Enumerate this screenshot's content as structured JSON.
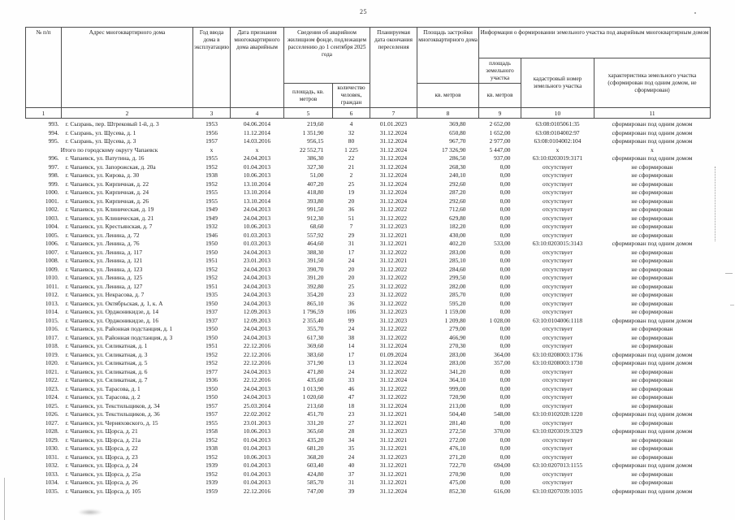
{
  "page": {
    "number": "25"
  },
  "table": {
    "header": {
      "num": "№ п/п",
      "address": "Адрес многоквартирного дома",
      "year": "Год ввода дома в эксплуатацию",
      "date_recognized": "Дата признания многоквартирного дома аварийным",
      "fund_group": "Сведения об аварийном жилищном фонде, подлежащем расселению до 1 сентября 2025 года",
      "fund_area": "площадь, кв. метров",
      "fund_people": "количество человек, граждан",
      "resettle_date": "Планируемая дата окончания переселения",
      "footprint": "Площадь застройки многоквартирного дома",
      "footprint_unit": "кв. метров",
      "land_group": "Информация о формировании земельного участка под аварийным многоквартирным домом",
      "land_area": "площадь земельного участка",
      "land_area_unit": "кв. метров",
      "cadastre": "кадастровый номер земельного участка",
      "characteristic": "характеристика земельного участка (сформирован под одним домом, не сформирован)"
    },
    "column_numbers": [
      "1",
      "2",
      "3",
      "4",
      "5",
      "6",
      "7",
      "8",
      "9",
      "10",
      "11"
    ],
    "rows": [
      {
        "n": "993.",
        "address": "г. Сызрань, пер. Штрековый 1-й, д. 3",
        "year": "1953",
        "date": "04.06.2014",
        "area": "219,60",
        "people": "4",
        "pdate": "01.01.2023",
        "footprint": "369,80",
        "land": "2 652,00",
        "cad": "63:08:0105061:35",
        "status": "сформирован под одним домом"
      },
      {
        "n": "994.",
        "address": "г. Сызрань, ул. Щусева, д. 1",
        "year": "1956",
        "date": "11.12.2014",
        "area": "1 351,90",
        "people": "32",
        "pdate": "31.12.2024",
        "footprint": "650,80",
        "land": "1 652,00",
        "cad": "63:08:0104002:97",
        "status": "сформирован под одним домом"
      },
      {
        "n": "995.",
        "address": "г. Сызрань, ул. Щусева, д. 3",
        "year": "1957",
        "date": "14.03.2016",
        "area": "956,15",
        "people": "80",
        "pdate": "31.12.2024",
        "footprint": "967,70",
        "land": "2 977,00",
        "cad": "63:08:0104002:104",
        "status": "сформирован под одним домом"
      },
      {
        "label": "Итого по городскому округу Чапаевск",
        "year": "x",
        "date": "x",
        "area": "22 552,71",
        "people": "1 225",
        "pdate": "31.12.2024",
        "footprint": "17 326,90",
        "land": "5 447,00",
        "cad": "x",
        "status": "x"
      },
      {
        "n": "996.",
        "address": "г. Чапаевск, ул. Ватутина, д. 16",
        "year": "1955",
        "date": "24.04.2013",
        "area": "386,30",
        "people": "22",
        "pdate": "31.12.2024",
        "footprint": "286,50",
        "land": "937,00",
        "cad": "63:10:0203019:3171",
        "status": "сформирован под одним домом"
      },
      {
        "n": "997.",
        "address": "г. Чапаевск, ул. Запорожская, д. 20а",
        "year": "1952",
        "date": "01.04.2013",
        "area": "327,30",
        "people": "21",
        "pdate": "31.12.2024",
        "footprint": "268,30",
        "land": "0,00",
        "cad": "отсутствует",
        "status": "не сформирован"
      },
      {
        "n": "998.",
        "address": "г. Чапаевск, ул. Кирова, д. 30",
        "year": "1938",
        "date": "10.06.2013",
        "area": "51,00",
        "people": "2",
        "pdate": "31.12.2024",
        "footprint": "240,10",
        "land": "0,00",
        "cad": "отсутствует",
        "status": "не сформирован"
      },
      {
        "n": "999.",
        "address": "г. Чапаевск, ул. Кирпичная, д. 22",
        "year": "1952",
        "date": "13.10.2014",
        "area": "407,20",
        "people": "25",
        "pdate": "31.12.2024",
        "footprint": "292,60",
        "land": "0,00",
        "cad": "отсутствует",
        "status": "не сформирован"
      },
      {
        "n": "1000.",
        "address": "г. Чапаевск, ул. Кирпичная, д. 24",
        "year": "1955",
        "date": "13.10.2014",
        "area": "418,80",
        "people": "19",
        "pdate": "31.12.2024",
        "footprint": "287,20",
        "land": "0,00",
        "cad": "отсутствует",
        "status": "не сформирован"
      },
      {
        "n": "1001.",
        "address": "г. Чапаевск, ул. Кирпичная, д. 26",
        "year": "1955",
        "date": "13.10.2014",
        "area": "393,80",
        "people": "20",
        "pdate": "31.12.2024",
        "footprint": "292,60",
        "land": "0,00",
        "cad": "отсутствует",
        "status": "не сформирован"
      },
      {
        "n": "1002.",
        "address": "г. Чапаевск, ул. Клиническая, д. 19",
        "year": "1949",
        "date": "24.04.2013",
        "area": "991,50",
        "people": "36",
        "pdate": "31.12.2022",
        "footprint": "712,60",
        "land": "0,00",
        "cad": "отсутствует",
        "status": "не сформирован"
      },
      {
        "n": "1003.",
        "address": "г. Чапаевск, ул. Клиническая, д. 21",
        "year": "1949",
        "date": "24.04.2013",
        "area": "912,30",
        "people": "51",
        "pdate": "31.12.2022",
        "footprint": "629,80",
        "land": "0,00",
        "cad": "отсутствует",
        "status": "не сформирован"
      },
      {
        "n": "1004.",
        "address": "г. Чапаевск, ул. Крестьянская, д. 7",
        "year": "1932",
        "date": "10.06.2013",
        "area": "68,60",
        "people": "7",
        "pdate": "31.12.2023",
        "footprint": "182,20",
        "land": "0,00",
        "cad": "отсутствует",
        "status": "не сформирован"
      },
      {
        "n": "1005.",
        "address": "г. Чапаевск, ул. Ленина, д. 72",
        "year": "1946",
        "date": "01.03.2013",
        "area": "557,92",
        "people": "29",
        "pdate": "31.12.2021",
        "footprint": "430,00",
        "land": "0,00",
        "cad": "отсутствует",
        "status": "не сформирован"
      },
      {
        "n": "1006.",
        "address": "г. Чапаевск, ул. Ленина, д. 76",
        "year": "1950",
        "date": "01.03.2013",
        "area": "464,60",
        "people": "31",
        "pdate": "31.12.2021",
        "footprint": "402,20",
        "land": "533,00",
        "cad": "63:10:0203015:3143",
        "status": "сформирован под одним домом"
      },
      {
        "n": "1007.",
        "address": "г. Чапаевск, ул. Ленина, д. 117",
        "year": "1950",
        "date": "24.04.2013",
        "area": "388,30",
        "people": "17",
        "pdate": "31.12.2022",
        "footprint": "283,00",
        "land": "0,00",
        "cad": "отсутствует",
        "status": "не сформирован"
      },
      {
        "n": "1008.",
        "address": "г. Чапаевск, ул. Ленина, д. 121",
        "year": "1951",
        "date": "23.01.2013",
        "area": "391,50",
        "people": "24",
        "pdate": "31.12.2021",
        "footprint": "285,10",
        "land": "0,00",
        "cad": "отсутствует",
        "status": "не сформирован"
      },
      {
        "n": "1009.",
        "address": "г. Чапаевск, ул. Ленина, д. 123",
        "year": "1952",
        "date": "24.04.2013",
        "area": "390,70",
        "people": "20",
        "pdate": "31.12.2022",
        "footprint": "284,60",
        "land": "0,00",
        "cad": "отсутствует",
        "status": "не сформирован"
      },
      {
        "n": "1010.",
        "address": "г. Чапаевск, ул. Ленина, д. 125",
        "year": "1952",
        "date": "24.04.2013",
        "area": "391,20",
        "people": "20",
        "pdate": "31.12.2022",
        "footprint": "299,50",
        "land": "0,00",
        "cad": "отсутствует",
        "status": "не сформирован"
      },
      {
        "n": "1011.",
        "address": "г. Чапаевск, ул. Ленина, д. 127",
        "year": "1951",
        "date": "24.04.2013",
        "area": "392,80",
        "people": "25",
        "pdate": "31.12.2022",
        "footprint": "282,00",
        "land": "0,00",
        "cad": "отсутствует",
        "status": "не сформирован"
      },
      {
        "n": "1012.",
        "address": "г. Чапаевск, ул. Некрасова, д. 7",
        "year": "1935",
        "date": "24.04.2013",
        "area": "354,20",
        "people": "23",
        "pdate": "31.12.2022",
        "footprint": "285,70",
        "land": "0,00",
        "cad": "отсутствует",
        "status": "не сформирован"
      },
      {
        "n": "1013.",
        "address": "г. Чапаевск, ул. Октябрьская, д. 1, к. А",
        "year": "1950",
        "date": "24.04.2013",
        "area": "865,10",
        "people": "36",
        "pdate": "31.12.2022",
        "footprint": "595,20",
        "land": "0,00",
        "cad": "отсутствует",
        "status": "не сформирован"
      },
      {
        "n": "1014.",
        "address": "г. Чапаевск, ул. Орджоникидзе, д. 14",
        "year": "1937",
        "date": "12.09.2013",
        "area": "1 796,59",
        "people": "106",
        "pdate": "31.12.2023",
        "footprint": "1 159,00",
        "land": "0,00",
        "cad": "отсутствует",
        "status": "не сформирован"
      },
      {
        "n": "1015.",
        "address": "г. Чапаевск, ул. Орджоникидзе, д. 16",
        "year": "1937",
        "date": "12.09.2013",
        "area": "2 355,40",
        "people": "99",
        "pdate": "31.12.2023",
        "footprint": "1 209,80",
        "land": "1 028,00",
        "cad": "63:10:0104006:1118",
        "status": "сформирован под одним домом"
      },
      {
        "n": "1016.",
        "address": "г. Чапаевск, ул. Районная подстанция, д. 1",
        "year": "1950",
        "date": "24.04.2013",
        "area": "355,70",
        "people": "24",
        "pdate": "31.12.2022",
        "footprint": "279,00",
        "land": "0,00",
        "cad": "отсутствует",
        "status": "не сформирован"
      },
      {
        "n": "1017.",
        "address": "г. Чапаевск, ул. Районная подстанция, д. 3",
        "year": "1950",
        "date": "24.04.2013",
        "area": "617,30",
        "people": "38",
        "pdate": "31.12.2022",
        "footprint": "466,90",
        "land": "0,00",
        "cad": "отсутствует",
        "status": "не сформирован"
      },
      {
        "n": "1018.",
        "address": "г. Чапаевск, ул. Силикатная, д. 1",
        "year": "1951",
        "date": "22.12.2016",
        "area": "369,60",
        "people": "14",
        "pdate": "31.12.2024",
        "footprint": "270,30",
        "land": "0,00",
        "cad": "отсутствует",
        "status": "не сформирован"
      },
      {
        "n": "1019.",
        "address": "г. Чапаевск, ул. Силикатная, д. 3",
        "year": "1952",
        "date": "22.12.2016",
        "area": "383,60",
        "people": "17",
        "pdate": "01.09.2024",
        "footprint": "283,00",
        "land": "364,00",
        "cad": "63:10:0208003:1736",
        "status": "сформирован под одним домом"
      },
      {
        "n": "1020.",
        "address": "г. Чапаевск, ул. Силикатная, д. 5",
        "year": "1952",
        "date": "22.12.2016",
        "area": "371,90",
        "people": "13",
        "pdate": "31.12.2024",
        "footprint": "283,00",
        "land": "357,00",
        "cad": "63:10:0208003:1730",
        "status": "сформирован под одним домом"
      },
      {
        "n": "1021.",
        "address": "г. Чапаевск, ул. Силикатная, д. 6",
        "year": "1977",
        "date": "24.04.2013",
        "area": "471,80",
        "people": "24",
        "pdate": "31.12.2022",
        "footprint": "341,20",
        "land": "0,00",
        "cad": "отсутствует",
        "status": "не сформирован"
      },
      {
        "n": "1022.",
        "address": "г. Чапаевск, ул. Силикатная, д. 7",
        "year": "1936",
        "date": "22.12.2016",
        "area": "435,60",
        "people": "33",
        "pdate": "31.12.2024",
        "footprint": "364,10",
        "land": "0,00",
        "cad": "отсутствует",
        "status": "не сформирован"
      },
      {
        "n": "1023.",
        "address": "г. Чапаевск, ул. Тарасова, д. 1",
        "year": "1950",
        "date": "24.04.2013",
        "area": "1 013,90",
        "people": "46",
        "pdate": "31.12.2022",
        "footprint": "999,00",
        "land": "0,00",
        "cad": "отсутствует",
        "status": "не сформирован"
      },
      {
        "n": "1024.",
        "address": "г. Чапаевск, ул. Тарасова, д. 2",
        "year": "1950",
        "date": "24.04.2013",
        "area": "1 020,60",
        "people": "47",
        "pdate": "31.12.2022",
        "footprint": "720,90",
        "land": "0,00",
        "cad": "отсутствует",
        "status": "не сформирован"
      },
      {
        "n": "1025.",
        "address": "г. Чапаевск, ул. Текстильщиков, д. 34",
        "year": "1957",
        "date": "25.03.2014",
        "area": "213,60",
        "people": "18",
        "pdate": "31.12.2024",
        "footprint": "213,00",
        "land": "0,00",
        "cad": "отсутствует",
        "status": "не сформирован"
      },
      {
        "n": "1026.",
        "address": "г. Чапаевск, ул. Текстильщиков, д. 36",
        "year": "1957",
        "date": "22.02.2012",
        "area": "451,70",
        "people": "23",
        "pdate": "31.12.2021",
        "footprint": "504,40",
        "land": "548,00",
        "cad": "63:10:0102028:1220",
        "status": "сформирован под одним домом"
      },
      {
        "n": "1027.",
        "address": "г. Чапаевск, ул. Черняховского, д. 15",
        "year": "1955",
        "date": "23.01.2013",
        "area": "331,20",
        "people": "27",
        "pdate": "31.12.2021",
        "footprint": "281,40",
        "land": "0,00",
        "cad": "отсутствует",
        "status": "не сформирован"
      },
      {
        "n": "1028.",
        "address": "г. Чапаевск, ул. Щорса, д. 21",
        "year": "1958",
        "date": "10.06.2013",
        "area": "365,60",
        "people": "28",
        "pdate": "31.12.2023",
        "footprint": "272,50",
        "land": "370,00",
        "cad": "63:10:0203019:3329",
        "status": "сформирован под одним домом"
      },
      {
        "n": "1029.",
        "address": "г. Чапаевск, ул. Щорса, д. 21а",
        "year": "1952",
        "date": "01.04.2013",
        "area": "435,20",
        "people": "34",
        "pdate": "31.12.2021",
        "footprint": "272,00",
        "land": "0,00",
        "cad": "отсутствует",
        "status": "не сформирован"
      },
      {
        "n": "1030.",
        "address": "г. Чапаевск, ул. Щорса, д. 22",
        "year": "1938",
        "date": "01.04.2013",
        "area": "681,20",
        "people": "35",
        "pdate": "31.12.2021",
        "footprint": "476,10",
        "land": "0,00",
        "cad": "отсутствует",
        "status": "не сформирован"
      },
      {
        "n": "1031.",
        "address": "г. Чапаевск, ул. Щорса, д. 23",
        "year": "1952",
        "date": "10.06.2013",
        "area": "368,20",
        "people": "24",
        "pdate": "31.12.2023",
        "footprint": "271,20",
        "land": "0,00",
        "cad": "отсутствует",
        "status": "не сформирован"
      },
      {
        "n": "1032.",
        "address": "г. Чапаевск, ул. Щорса, д. 24",
        "year": "1939",
        "date": "01.04.2013",
        "area": "603,40",
        "people": "40",
        "pdate": "31.12.2021",
        "footprint": "722,70",
        "land": "694,00",
        "cad": "63:10:0207013:1155",
        "status": "сформирован под одним домом"
      },
      {
        "n": "1033.",
        "address": "г. Чапаевск, ул. Щорса, д. 25а",
        "year": "1952",
        "date": "01.04.2013",
        "area": "424,80",
        "people": "37",
        "pdate": "31.12.2021",
        "footprint": "270,90",
        "land": "0,00",
        "cad": "отсутствует",
        "status": "не сформирован"
      },
      {
        "n": "1034.",
        "address": "г. Чапаевск, ул. Щорса, д. 26",
        "year": "1939",
        "date": "01.04.2013",
        "area": "585,70",
        "people": "31",
        "pdate": "31.12.2021",
        "footprint": "475,00",
        "land": "0,00",
        "cad": "отсутствует",
        "status": "не сформирован"
      },
      {
        "n": "1035.",
        "address": "г. Чапаевск, ул. Щорса, д. 105",
        "year": "1959",
        "date": "22.12.2016",
        "area": "747,00",
        "people": "39",
        "pdate": "31.12.2024",
        "footprint": "852,30",
        "land": "616,00",
        "cad": "63:10:0207039:1035",
        "status": "сформирован под одним домом"
      }
    ]
  }
}
